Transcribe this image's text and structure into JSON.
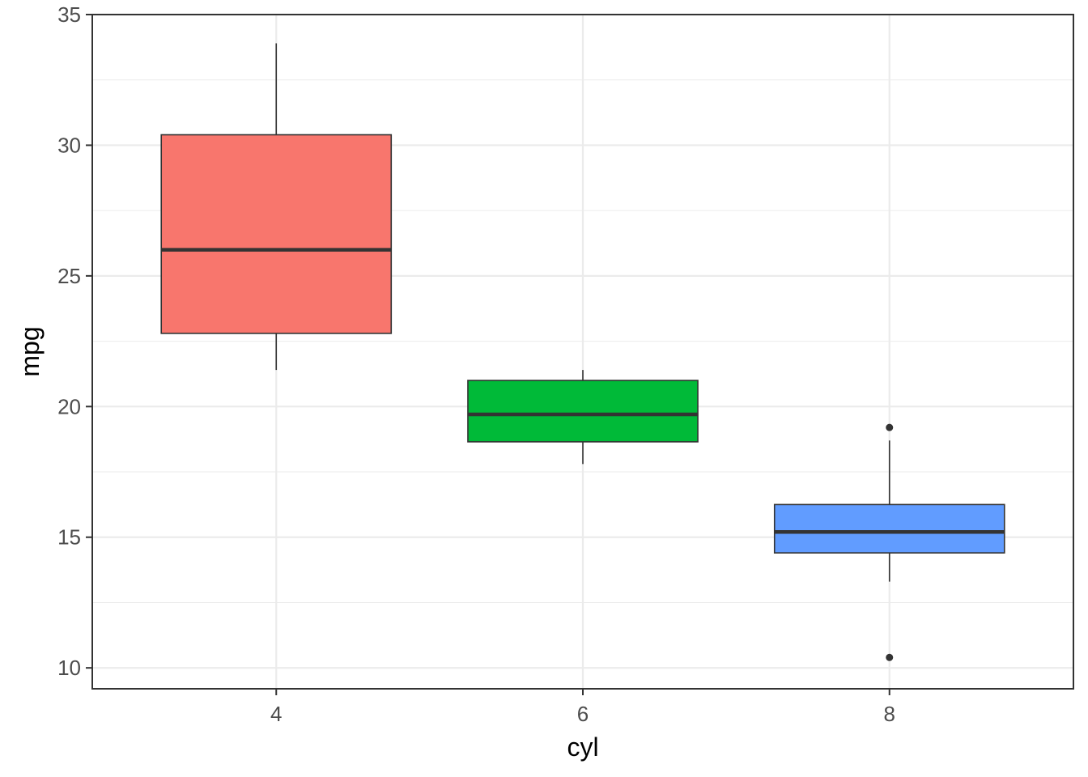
{
  "chart_data": {
    "type": "boxplot",
    "xlabel": "cyl",
    "ylabel": "mpg",
    "categories": [
      "4",
      "6",
      "8"
    ],
    "x_values": [
      4,
      6,
      8
    ],
    "xlim": [
      2.8,
      9.2
    ],
    "ylim": [
      9.2,
      35.0
    ],
    "y_ticks": [
      10,
      15,
      20,
      25,
      30,
      35
    ],
    "x_ticks": [
      4,
      6,
      8
    ],
    "grid": true,
    "boxes": [
      {
        "x": 4,
        "whisker_low": 21.4,
        "q1": 22.8,
        "median": 26.0,
        "q3": 30.4,
        "whisker_high": 33.9,
        "outliers": [],
        "fill": "#F8766D"
      },
      {
        "x": 6,
        "whisker_low": 17.8,
        "q1": 18.65,
        "median": 19.7,
        "q3": 21.0,
        "whisker_high": 21.4,
        "outliers": [],
        "fill": "#00BA38"
      },
      {
        "x": 8,
        "whisker_low": 13.3,
        "q1": 14.4,
        "median": 15.2,
        "q3": 16.25,
        "whisker_high": 18.7,
        "outliers": [
          10.4,
          19.2
        ],
        "fill": "#619CFF"
      }
    ],
    "colors": {
      "grid": "#ebebeb",
      "border": "#333333",
      "box_stroke": "#333333"
    }
  }
}
